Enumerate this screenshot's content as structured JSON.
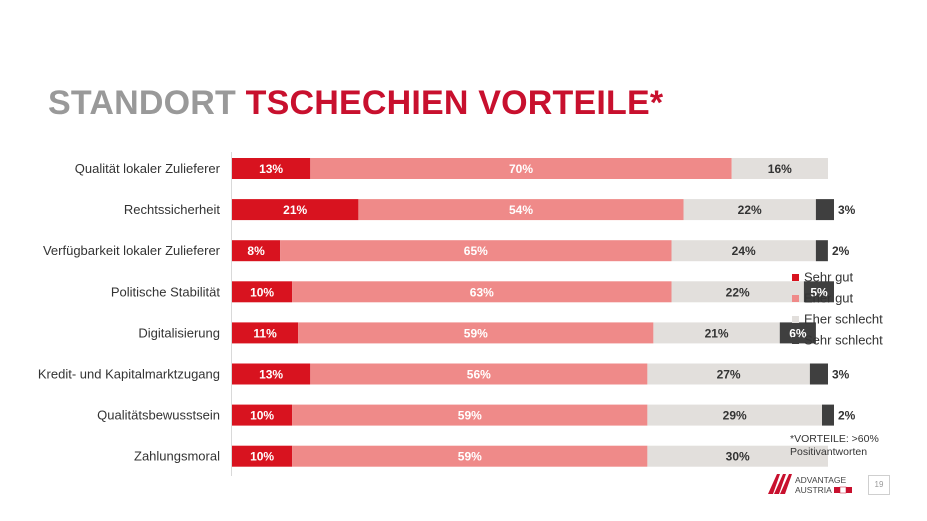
{
  "slide": {
    "title_part1": "STANDORT",
    "title_part2": "TSCHECHIEN VORTEILE*",
    "footnote_line1": "*VORTEILE: >60%",
    "footnote_line2": "Positivantworten",
    "logo_line1": "ADVANTAGE",
    "logo_line2": "AUSTRIA",
    "page_number": "19"
  },
  "colors": {
    "title_gray": "#999999",
    "title_red": "#c8102e",
    "sehr_gut": "#d8131f",
    "eher_gut": "#ef8a89",
    "eher_schlecht": "#e2dfdc",
    "sehr_schlecht": "#3f3f3f"
  },
  "chart_data": {
    "type": "bar",
    "orientation": "horizontal",
    "stacked": true,
    "value_unit": "%",
    "categories": [
      "Qualität lokaler Zulieferer",
      "Rechtssicherheit",
      "Verfügbarkeit lokaler Zulieferer",
      "Politische Stabilität",
      "Digitalisierung",
      "Kredit- und Kapitalmarktzugang",
      "Qualitätsbewusstsein",
      "Zahlungsmoral"
    ],
    "series": [
      {
        "name": "Sehr gut",
        "values": [
          13,
          21,
          8,
          10,
          11,
          13,
          10,
          10
        ]
      },
      {
        "name": "Eher gut",
        "values": [
          70,
          54,
          65,
          63,
          59,
          56,
          59,
          59
        ]
      },
      {
        "name": "Eher schlecht",
        "values": [
          16,
          22,
          24,
          22,
          21,
          27,
          29,
          30
        ]
      },
      {
        "name": "Sehr schlecht",
        "values": [
          0,
          3,
          2,
          5,
          6,
          3,
          2,
          0
        ]
      }
    ],
    "legend_position": "right"
  }
}
